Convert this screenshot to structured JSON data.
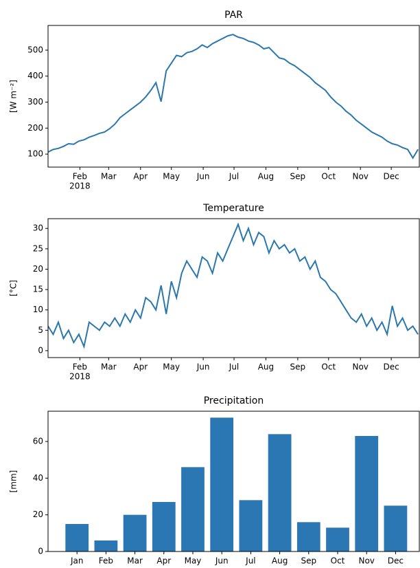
{
  "chart_data": [
    {
      "type": "line",
      "title": "PAR",
      "ylabel": "[W m⁻²]",
      "color": "#2a77ad",
      "x": [
        0,
        5,
        10,
        15,
        20,
        25,
        30,
        35,
        40,
        45,
        50,
        55,
        60,
        65,
        70,
        75,
        80,
        85,
        90,
        95,
        100,
        105,
        110,
        115,
        120,
        125,
        130,
        135,
        140,
        145,
        150,
        155,
        160,
        165,
        170,
        175,
        180,
        185,
        190,
        195,
        200,
        205,
        210,
        215,
        220,
        225,
        230,
        235,
        240,
        245,
        250,
        255,
        260,
        265,
        270,
        275,
        280,
        285,
        290,
        295,
        300,
        305,
        310,
        315,
        320,
        325,
        330,
        335,
        340,
        345,
        350,
        355,
        360
      ],
      "values": [
        108,
        118,
        122,
        130,
        140,
        138,
        150,
        155,
        165,
        172,
        180,
        185,
        198,
        215,
        240,
        255,
        270,
        285,
        300,
        320,
        345,
        375,
        302,
        420,
        450,
        480,
        475,
        490,
        495,
        505,
        520,
        510,
        525,
        535,
        545,
        555,
        560,
        550,
        545,
        535,
        530,
        520,
        505,
        510,
        490,
        470,
        465,
        450,
        440,
        425,
        410,
        395,
        375,
        360,
        345,
        320,
        300,
        285,
        265,
        250,
        230,
        215,
        200,
        185,
        175,
        165,
        150,
        140,
        135,
        125,
        118,
        85,
        118
      ],
      "xlim": [
        0,
        361.3
      ],
      "xticks": [
        {
          "value": 31,
          "label": "Feb"
        },
        {
          "value": 59,
          "label": "Mar"
        },
        {
          "value": 90,
          "label": "Apr"
        },
        {
          "value": 120,
          "label": "May"
        },
        {
          "value": 151,
          "label": "Jun"
        },
        {
          "value": 181,
          "label": "Jul"
        },
        {
          "value": 212,
          "label": "Aug"
        },
        {
          "value": 243,
          "label": "Sep"
        },
        {
          "value": 273,
          "label": "Oct"
        },
        {
          "value": 304,
          "label": "Nov"
        },
        {
          "value": 334,
          "label": "Dec"
        }
      ],
      "year_label": "2018",
      "ylim": [
        50,
        595
      ],
      "yticks": [
        100,
        200,
        300,
        400,
        500
      ]
    },
    {
      "type": "line",
      "title": "Temperature",
      "ylabel": "[°C]",
      "color": "#2a77ad",
      "x": [
        0,
        5,
        10,
        15,
        20,
        25,
        30,
        35,
        40,
        45,
        50,
        55,
        60,
        65,
        70,
        75,
        80,
        85,
        90,
        95,
        100,
        105,
        110,
        115,
        120,
        125,
        130,
        135,
        140,
        145,
        150,
        155,
        160,
        165,
        170,
        175,
        180,
        185,
        190,
        195,
        200,
        205,
        210,
        215,
        220,
        225,
        230,
        235,
        240,
        245,
        250,
        255,
        260,
        265,
        270,
        275,
        280,
        285,
        290,
        295,
        300,
        305,
        310,
        315,
        320,
        325,
        330,
        335,
        340,
        345,
        350,
        355,
        360
      ],
      "values": [
        6,
        4,
        7,
        3,
        5,
        2,
        4,
        1,
        7,
        6,
        5,
        7,
        6,
        8,
        6,
        9,
        7,
        10,
        8,
        13,
        12,
        10,
        16,
        9,
        17,
        13,
        19,
        22,
        20,
        18,
        23,
        22,
        19,
        24,
        22,
        25,
        28,
        31,
        27,
        30,
        26,
        29,
        28,
        24,
        27,
        25,
        26,
        24,
        25,
        22,
        23,
        20,
        22,
        18,
        17,
        15,
        14,
        12,
        10,
        8,
        7,
        9,
        6,
        8,
        5,
        7,
        4,
        11,
        6,
        8,
        5,
        6,
        4
      ],
      "xlim": [
        0,
        361.3
      ],
      "xticks": [
        {
          "value": 31,
          "label": "Feb"
        },
        {
          "value": 59,
          "label": "Mar"
        },
        {
          "value": 90,
          "label": "Apr"
        },
        {
          "value": 120,
          "label": "May"
        },
        {
          "value": 151,
          "label": "Jun"
        },
        {
          "value": 181,
          "label": "Jul"
        },
        {
          "value": 212,
          "label": "Aug"
        },
        {
          "value": 243,
          "label": "Sep"
        },
        {
          "value": 273,
          "label": "Oct"
        },
        {
          "value": 304,
          "label": "Nov"
        },
        {
          "value": 334,
          "label": "Dec"
        }
      ],
      "year_label": "2018",
      "ylim": [
        -1.7,
        32.4
      ],
      "yticks": [
        0,
        5,
        10,
        15,
        20,
        25,
        30
      ]
    },
    {
      "type": "bar",
      "title": "Precipitation",
      "ylabel": "[mm]",
      "color": "#2a77b4",
      "categories": [
        "Jan",
        "Feb",
        "Mar",
        "Apr",
        "May",
        "Jun",
        "Jul",
        "Aug",
        "Sep",
        "Oct",
        "Nov",
        "Dec"
      ],
      "values": [
        15,
        6,
        20,
        27,
        46,
        73,
        28,
        64,
        16,
        13,
        63,
        25
      ],
      "ylim": [
        0,
        76.5
      ],
      "yticks": [
        0,
        20,
        40,
        60
      ]
    }
  ]
}
